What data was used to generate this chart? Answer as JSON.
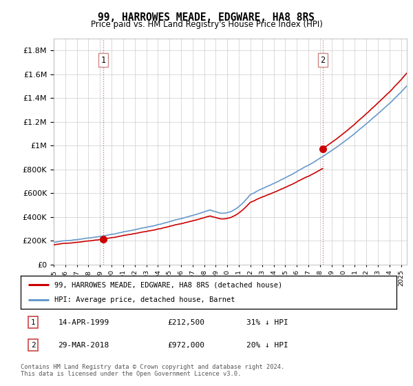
{
  "title": "99, HARROWES MEADE, EDGWARE, HA8 8RS",
  "subtitle": "Price paid vs. HM Land Registry's House Price Index (HPI)",
  "ytick_values": [
    0,
    200000,
    400000,
    600000,
    800000,
    1000000,
    1200000,
    1400000,
    1600000,
    1800000
  ],
  "ylim": [
    0,
    1900000
  ],
  "xlim_start": 1995.0,
  "xlim_end": 2025.5,
  "xtick_years": [
    1995,
    1996,
    1997,
    1998,
    1999,
    2000,
    2001,
    2002,
    2003,
    2004,
    2005,
    2006,
    2007,
    2008,
    2009,
    2010,
    2011,
    2012,
    2013,
    2014,
    2015,
    2016,
    2017,
    2018,
    2019,
    2020,
    2021,
    2022,
    2023,
    2024,
    2025
  ],
  "hpi_color": "#6699cc",
  "price_color": "#cc0000",
  "marker_color": "#cc0000",
  "marker1_x": 1999.29,
  "marker1_y": 212500,
  "marker2_x": 2018.24,
  "marker2_y": 972000,
  "legend_label_red": "99, HARROWES MEADE, EDGWARE, HA8 8RS (detached house)",
  "legend_label_blue": "HPI: Average price, detached house, Barnet",
  "table_rows": [
    {
      "num": "1",
      "date": "14-APR-1999",
      "price": "£212,500",
      "pct": "31% ↓ HPI"
    },
    {
      "num": "2",
      "date": "29-MAR-2018",
      "price": "£972,000",
      "pct": "20% ↓ HPI"
    }
  ],
  "footnote": "Contains HM Land Registry data © Crown copyright and database right 2024.\nThis data is licensed under the Open Government Licence v3.0.",
  "bg_color": "#ffffff",
  "plot_bg_color": "#ffffff",
  "grid_color": "#cccccc"
}
